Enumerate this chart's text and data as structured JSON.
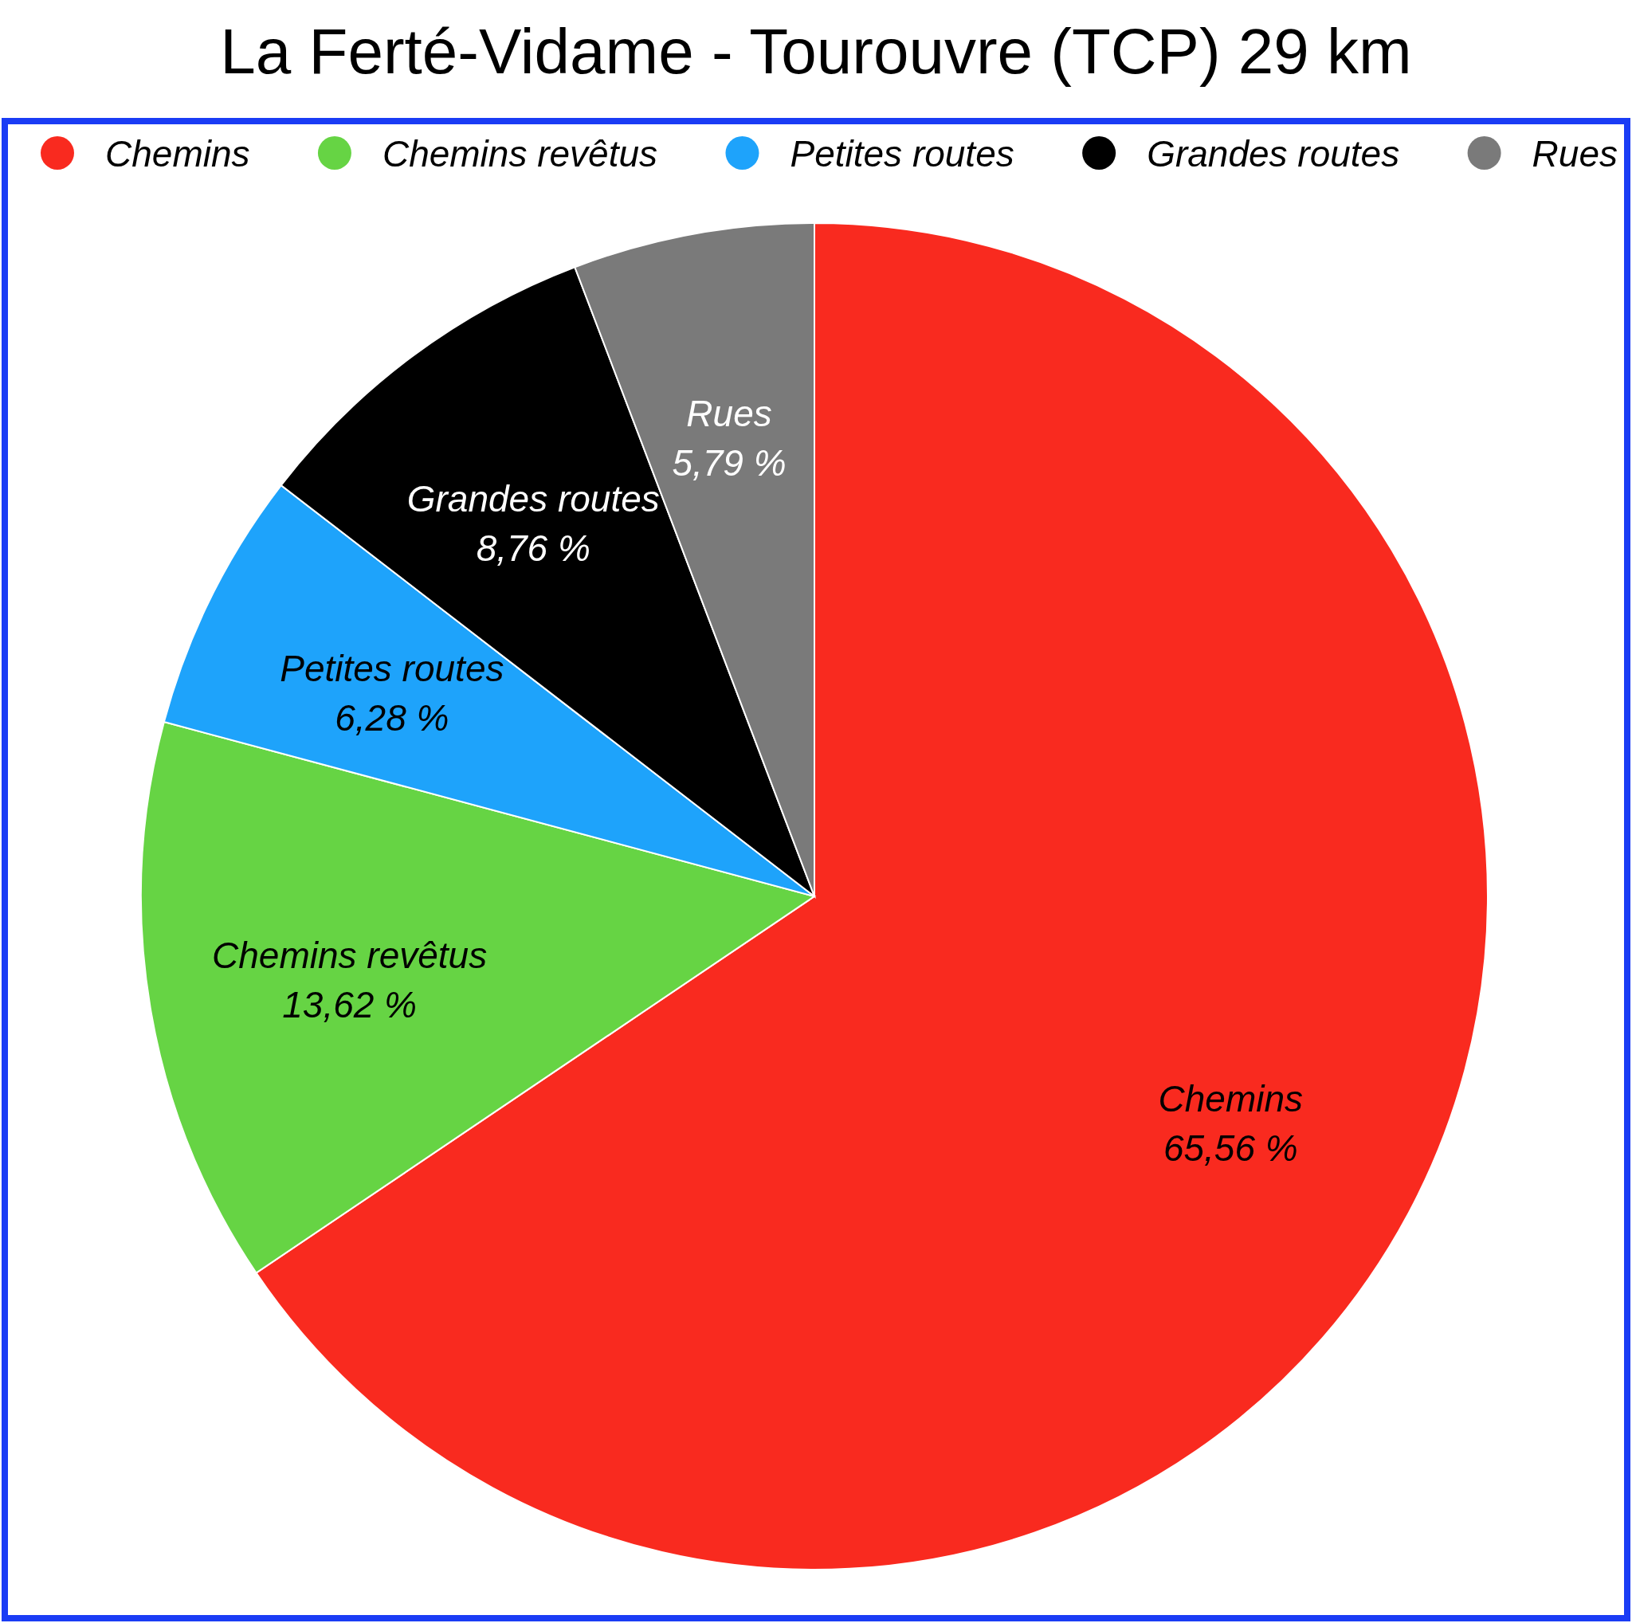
{
  "chart_data": {
    "type": "pie",
    "title": "La Ferté-Vidame - Tourouvre (TCP) 29 km",
    "categories": [
      "Chemins",
      "Chemins revêtus",
      "Petites routes",
      "Grandes routes",
      "Rues"
    ],
    "values": [
      65.56,
      13.62,
      6.28,
      8.76,
      5.79
    ],
    "colors": [
      "#f92a1f",
      "#66d444",
      "#1ea3fb",
      "#000000",
      "#7a7a7a"
    ],
    "value_labels": [
      "65,56 %",
      "13,62 %",
      "6,28 %",
      "8,76 %",
      "5,79 %"
    ],
    "legend": "top"
  }
}
